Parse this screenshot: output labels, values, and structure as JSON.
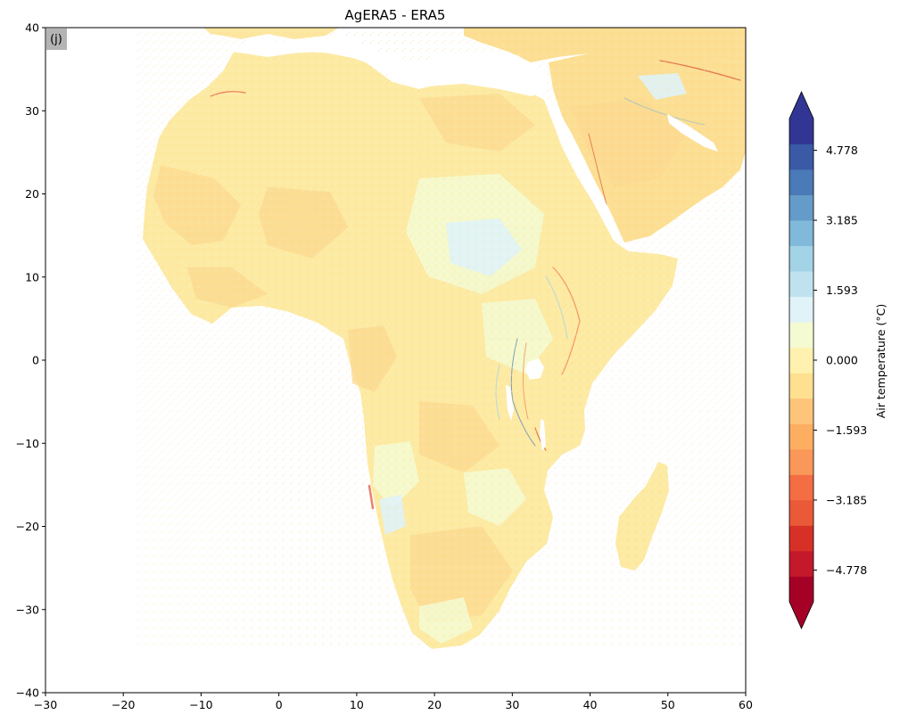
{
  "figure": {
    "title": "AgERA5 - ERA5",
    "panel_label": "(j)"
  },
  "map": {
    "x_range": [
      -30,
      60
    ],
    "y_range": [
      -40,
      40
    ],
    "x_ticks": [
      -30,
      -20,
      -10,
      0,
      10,
      20,
      30,
      40,
      50,
      60
    ],
    "y_ticks": [
      -40,
      -30,
      -20,
      -10,
      0,
      10,
      20,
      30,
      40
    ],
    "x_tick_labels": [
      "−30",
      "−20",
      "−10",
      "0",
      "10",
      "20",
      "30",
      "40",
      "50",
      "60"
    ],
    "y_tick_labels": [
      "−40",
      "−30",
      "−20",
      "−10",
      "0",
      "10",
      "20",
      "30",
      "40"
    ],
    "land_fill": "#fdeaa3",
    "ocean_fill": "#ffffff"
  },
  "colorbar": {
    "label": "Air temperature ($^\\circ$C)",
    "label_text": "Air temperature (°C)",
    "extend": "both",
    "ticks": [
      4.778,
      3.185,
      1.593,
      0.0,
      -1.593,
      -3.185,
      -4.778
    ],
    "tick_labels": [
      "4.778",
      "3.185",
      "1.593",
      "0.000",
      "−1.593",
      "−3.185",
      "−4.778"
    ],
    "range": [
      -5.5,
      5.5
    ],
    "colors": [
      "#a50026",
      "#c4192b",
      "#d73027",
      "#ea5a39",
      "#f46d43",
      "#f99858",
      "#fdae61",
      "#fdc47a",
      "#fee090",
      "#fff2b0",
      "#f4fbd2",
      "#e0f3f8",
      "#c0e2ef",
      "#a3d3e6",
      "#80b9d9",
      "#649bc8",
      "#4a7ab7",
      "#3a5aa6",
      "#313695"
    ],
    "over_color": "#313695",
    "under_color": "#a50026"
  },
  "chart_data": {
    "type": "heatmap",
    "title": "AgERA5 - ERA5",
    "xlabel": "",
    "ylabel": "",
    "xlim": [
      -30,
      60
    ],
    "ylim": [
      -40,
      40
    ],
    "colorbar_label": "Air temperature (°C)",
    "colorbar_ticks": [
      -4.778,
      -3.185,
      -1.593,
      0.0,
      1.593,
      3.185,
      4.778
    ]
  }
}
